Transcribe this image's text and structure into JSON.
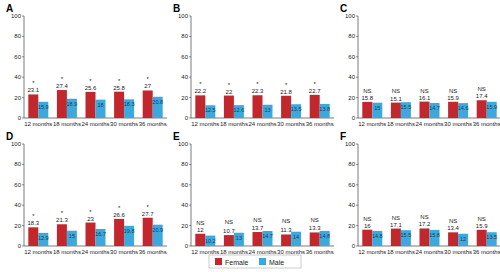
{
  "chart_data": [
    {
      "type": "bar",
      "title": "A",
      "categories": [
        "12 months",
        "18 months",
        "24 months",
        "30 months",
        "36 months"
      ],
      "series": [
        {
          "name": "Female",
          "color": "#c1272d",
          "values": [
            23.1,
            27.4,
            25.6,
            25.8,
            27.0
          ]
        },
        {
          "name": "Male",
          "color": "#3ba9dd",
          "values": [
            15.9,
            18.9,
            18.0,
            18.3,
            20.8
          ]
        }
      ],
      "annotations": [
        "*",
        "*",
        "*",
        "*",
        "*"
      ],
      "ylim": [
        0,
        100
      ],
      "yticks": [
        0,
        20,
        40,
        60,
        80,
        100
      ],
      "grid": false,
      "data_labels": true,
      "legend": "bottom"
    },
    {
      "type": "bar",
      "title": "B",
      "categories": [
        "12 months",
        "18 months",
        "24 months",
        "30 months",
        "36 months"
      ],
      "series": [
        {
          "name": "Female",
          "color": "#c1272d",
          "values": [
            22.2,
            22.0,
            22.3,
            21.8,
            22.7
          ]
        },
        {
          "name": "Male",
          "color": "#3ba9dd",
          "values": [
            12.5,
            12.6,
            13.0,
            13.5,
            13.8
          ]
        }
      ],
      "annotations": [
        "*",
        "*",
        "*",
        "*",
        "*"
      ],
      "ylim": [
        0,
        100
      ],
      "yticks": [
        0,
        20,
        40,
        60,
        80,
        100
      ],
      "grid": false,
      "data_labels": true
    },
    {
      "type": "bar",
      "title": "C",
      "categories": [
        "12 months",
        "18 months",
        "24 months",
        "30 months",
        "36 months"
      ],
      "series": [
        {
          "name": "Female",
          "color": "#c1272d",
          "values": [
            15.8,
            15.1,
            16.1,
            15.9,
            17.4
          ]
        },
        {
          "name": "Male",
          "color": "#3ba9dd",
          "values": [
            15.0,
            15.5,
            14.7,
            14.6,
            15.9
          ]
        }
      ],
      "annotations": [
        "NS",
        "NS",
        "NS",
        "NS",
        "NS"
      ],
      "ylim": [
        0,
        100
      ],
      "yticks": [
        0,
        20,
        40,
        60,
        80,
        100
      ],
      "grid": false,
      "data_labels": true
    },
    {
      "type": "bar",
      "title": "D",
      "categories": [
        "12 months",
        "18 months",
        "24 months",
        "30 months",
        "36 months"
      ],
      "series": [
        {
          "name": "Female",
          "color": "#c1272d",
          "values": [
            18.3,
            21.3,
            23.0,
            26.6,
            27.7
          ]
        },
        {
          "name": "Male",
          "color": "#3ba9dd",
          "values": [
            12.9,
            15.0,
            16.7,
            19.8,
            20.9
          ]
        }
      ],
      "annotations": [
        "*",
        "*",
        "*",
        "*",
        "*"
      ],
      "ylim": [
        0,
        100
      ],
      "yticks": [
        0,
        20,
        40,
        60,
        80,
        100
      ],
      "grid": false,
      "data_labels": true
    },
    {
      "type": "bar",
      "title": "E",
      "categories": [
        "12 months",
        "18 months",
        "24 months",
        "30 months",
        "36 months"
      ],
      "series": [
        {
          "name": "Female",
          "color": "#c1272d",
          "values": [
            12.0,
            10.7,
            13.7,
            11.3,
            13.3
          ]
        },
        {
          "name": "Male",
          "color": "#3ba9dd",
          "values": [
            10.2,
            13.0,
            14.7,
            14.0,
            14.8
          ]
        }
      ],
      "annotations": [
        "NS",
        "NS",
        "NS",
        "NS",
        "NS"
      ],
      "ylim": [
        0,
        100
      ],
      "yticks": [
        0,
        20,
        40,
        60,
        80,
        100
      ],
      "grid": false,
      "data_labels": true
    },
    {
      "type": "bar",
      "title": "F",
      "categories": [
        "12 months",
        "18 months",
        "24 months",
        "30 months",
        "36 months"
      ],
      "series": [
        {
          "name": "Female",
          "color": "#c1272d",
          "values": [
            16.0,
            17.1,
            17.2,
            13.4,
            15.9
          ]
        },
        {
          "name": "Male",
          "color": "#3ba9dd",
          "values": [
            14.8,
            15.5,
            15.8,
            12.0,
            13.5
          ]
        }
      ],
      "annotations": [
        "NS",
        "NS",
        "NS",
        "NS",
        "NS"
      ],
      "ylim": [
        0,
        100
      ],
      "yticks": [
        0,
        20,
        40,
        60,
        80,
        100
      ],
      "grid": false,
      "data_labels": true
    }
  ]
}
